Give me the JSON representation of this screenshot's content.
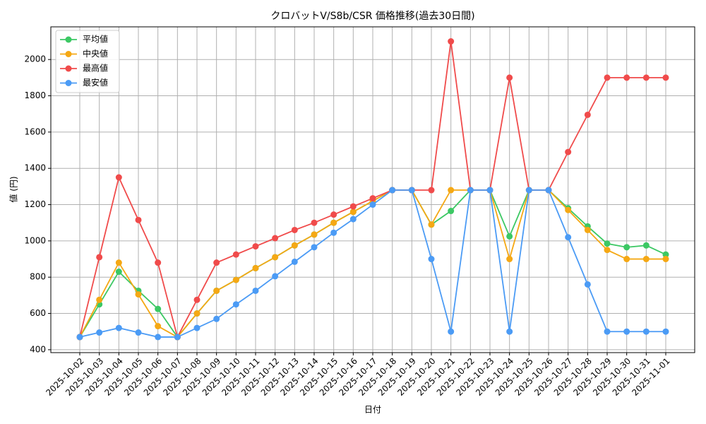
{
  "chart_data": {
    "type": "line",
    "title": "クロバットV/S8b/CSR 価格推移(過去30日間)",
    "x_label": "日付",
    "y_label": "値 (円)",
    "x": [
      "2025-10-02",
      "2025-10-03",
      "2025-10-04",
      "2025-10-05",
      "2025-10-06",
      "2025-10-07",
      "2025-10-08",
      "2025-10-09",
      "2025-10-10",
      "2025-10-11",
      "2025-10-12",
      "2025-10-13",
      "2025-10-14",
      "2025-10-15",
      "2025-10-16",
      "2025-10-17",
      "2025-10-18",
      "2025-10-19",
      "2025-10-20",
      "2025-10-21",
      "2025-10-22",
      "2025-10-23",
      "2025-10-24",
      "2025-10-25",
      "2025-10-26",
      "2025-10-27",
      "2025-10-28",
      "2025-10-29",
      "2025-10-30",
      "2025-10-31",
      "2025-11-01"
    ],
    "series": [
      {
        "name": "平均値",
        "color": "#3cc864",
        "values": [
          470,
          650,
          830,
          725,
          625,
          470,
          600,
          725,
          785,
          850,
          910,
          975,
          1035,
          1100,
          1160,
          1220,
          1280,
          1280,
          1090,
          1165,
          1280,
          1280,
          1025,
          1280,
          1280,
          1180,
          1080,
          985,
          965,
          975,
          925
        ]
      },
      {
        "name": "中央値",
        "color": "#f5a814",
        "values": [
          470,
          675,
          880,
          705,
          530,
          470,
          600,
          725,
          785,
          850,
          910,
          975,
          1035,
          1100,
          1160,
          1220,
          1280,
          1280,
          1090,
          1280,
          1280,
          1280,
          900,
          1280,
          1280,
          1170,
          1060,
          950,
          900,
          900,
          900
        ]
      },
      {
        "name": "最高値",
        "color": "#f04b4b",
        "values": [
          470,
          910,
          1350,
          1115,
          880,
          470,
          675,
          880,
          925,
          970,
          1015,
          1060,
          1100,
          1145,
          1190,
          1235,
          1280,
          1280,
          1280,
          2100,
          1280,
          1280,
          1900,
          1280,
          1280,
          1490,
          1695,
          1900,
          1900,
          1900,
          1900
        ]
      },
      {
        "name": "最安値",
        "color": "#4b9bf5",
        "values": [
          470,
          495,
          520,
          495,
          470,
          470,
          520,
          570,
          650,
          725,
          805,
          885,
          965,
          1045,
          1120,
          1200,
          1280,
          1280,
          900,
          500,
          1280,
          1280,
          500,
          1280,
          1280,
          1020,
          760,
          500,
          500,
          500,
          500
        ]
      }
    ],
    "ylim": [
      384,
      2180
    ],
    "yticks": [
      400,
      600,
      800,
      1000,
      1200,
      1400,
      1600,
      1800,
      2000
    ],
    "grid": true,
    "legend": "upper left"
  }
}
